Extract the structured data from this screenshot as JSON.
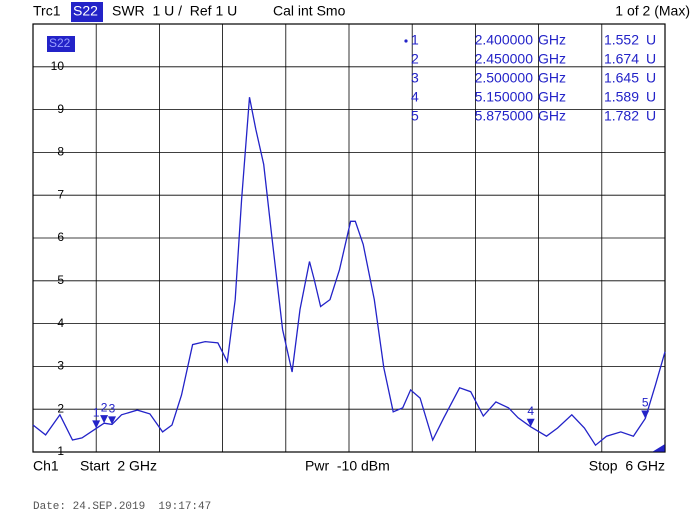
{
  "chart_data": {
    "type": "line",
    "trace": "S22",
    "header": {
      "trace_name": "Trc1",
      "format": "SWR  1 U /  Ref 1 U",
      "cal": "Cal int Smo",
      "page": "1 of 2 (Max)"
    },
    "footer": {
      "channel": "Ch1",
      "start": "Start  2 GHz",
      "power": "Pwr  -10 dBm",
      "stop": "Stop  6 GHz"
    },
    "date": "Date: 24.SEP.2019  19:17:47",
    "color": "#2323c8",
    "grid": true,
    "xlim": [
      2,
      6
    ],
    "xticks": [
      2,
      2.4,
      2.8,
      3.2,
      3.6,
      4,
      4.4,
      4.8,
      5.2,
      5.6,
      6
    ],
    "ylim": [
      1,
      11
    ],
    "yticks": [
      1,
      2,
      3,
      4,
      5,
      6,
      7,
      8,
      9,
      10
    ],
    "x": [
      2.0,
      2.08,
      2.17,
      2.25,
      2.31,
      2.4,
      2.45,
      2.5,
      2.56,
      2.66,
      2.74,
      2.82,
      2.88,
      2.94,
      3.01,
      3.09,
      3.17,
      3.23,
      3.28,
      3.32,
      3.37,
      3.41,
      3.46,
      3.51,
      3.58,
      3.64,
      3.69,
      3.75,
      3.78,
      3.82,
      3.88,
      3.94,
      4.01,
      4.04,
      4.09,
      4.16,
      4.22,
      4.28,
      4.34,
      4.39,
      4.45,
      4.53,
      4.6,
      4.7,
      4.77,
      4.85,
      4.93,
      5.01,
      5.07,
      5.15,
      5.25,
      5.32,
      5.41,
      5.49,
      5.56,
      5.63,
      5.72,
      5.8,
      5.875,
      5.94,
      6.0
    ],
    "values": [
      1.63,
      1.4,
      1.87,
      1.28,
      1.33,
      1.552,
      1.674,
      1.645,
      1.87,
      1.98,
      1.89,
      1.47,
      1.63,
      2.33,
      3.51,
      3.58,
      3.55,
      3.11,
      4.56,
      6.9,
      9.29,
      8.54,
      7.72,
      6.08,
      3.86,
      2.87,
      4.33,
      5.45,
      5.03,
      4.4,
      4.56,
      5.26,
      6.39,
      6.39,
      5.85,
      4.56,
      2.97,
      1.94,
      2.03,
      2.45,
      2.26,
      1.28,
      1.8,
      2.5,
      2.41,
      1.84,
      2.17,
      2.03,
      1.8,
      1.589,
      1.37,
      1.56,
      1.87,
      1.56,
      1.16,
      1.37,
      1.47,
      1.37,
      1.782,
      2.57,
      3.34
    ],
    "markers": [
      {
        "label": "1",
        "x": {
          "value": 2.4,
          "label": "2.400000"
        },
        "x_unit": "GHz",
        "y": 1.552,
        "y_unit": "U"
      },
      {
        "label": "2",
        "x": {
          "value": 2.45,
          "label": "2.450000"
        },
        "x_unit": "GHz",
        "y": 1.674,
        "y_unit": "U"
      },
      {
        "label": "3",
        "x": {
          "value": 2.5,
          "label": "2.500000"
        },
        "x_unit": "GHz",
        "y": 1.645,
        "y_unit": "U"
      },
      {
        "label": "4",
        "x": {
          "value": 5.15,
          "label": "5.150000"
        },
        "x_unit": "GHz",
        "y": 1.589,
        "y_unit": "U"
      },
      {
        "label": "5",
        "x": {
          "value": 5.875,
          "label": "5.875000"
        },
        "x_unit": "GHz",
        "y": 1.782,
        "y_unit": "U"
      }
    ]
  }
}
